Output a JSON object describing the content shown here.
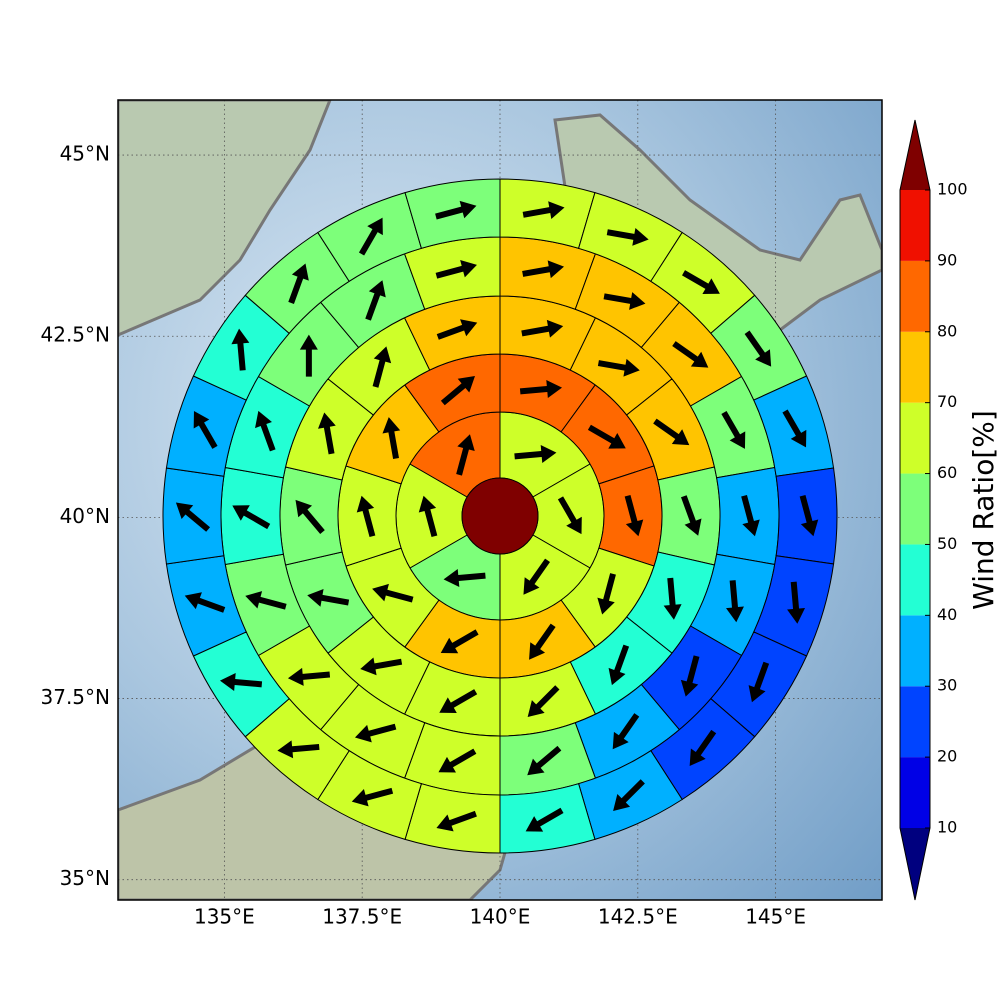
{
  "chart_data": {
    "type": "polar-sector-map",
    "xlim": [
      133.07,
      146.93
    ],
    "xticks": [
      {
        "value": 135,
        "label": "135°E"
      },
      {
        "value": 137.5,
        "label": "137.5°E"
      },
      {
        "value": 140,
        "label": "140°E"
      },
      {
        "value": 142.5,
        "label": "142.5°E"
      },
      {
        "value": 145,
        "label": "145°E"
      }
    ],
    "ylim": [
      34.72,
      45.76
    ],
    "yticks": [
      {
        "value": 35,
        "label": "35°N"
      },
      {
        "value": 37.5,
        "label": "37.5°N"
      },
      {
        "value": 40,
        "label": "40°N"
      },
      {
        "value": 42.5,
        "label": "42.5°N"
      },
      {
        "value": 45,
        "label": "45°N"
      }
    ],
    "grid": true,
    "center_value": 105,
    "rings": [
      {
        "values": [
          65,
          65,
          65,
          55,
          65,
          85
        ],
        "directions": [
          85,
          150,
          215,
          265,
          345,
          15
        ]
      },
      {
        "values": [
          85,
          85,
          85,
          65,
          75,
          75,
          65,
          65,
          75,
          85
        ],
        "directions": [
          85,
          120,
          165,
          195,
          215,
          240,
          285,
          345,
          350,
          50
        ]
      },
      {
        "values": [
          75,
          75,
          75,
          55,
          45,
          45,
          65,
          65,
          65,
          55,
          55,
          65,
          65,
          75
        ],
        "directions": [
          80,
          100,
          125,
          160,
          175,
          200,
          225,
          240,
          260,
          280,
          320,
          350,
          15,
          70
        ]
      },
      {
        "values": [
          75,
          75,
          75,
          55,
          35,
          35,
          25,
          35,
          55,
          65,
          65,
          65,
          55,
          45,
          45,
          55,
          55,
          65
        ],
        "directions": [
          80,
          100,
          125,
          150,
          165,
          175,
          195,
          215,
          230,
          240,
          255,
          265,
          285,
          300,
          340,
          0,
          20,
          75
        ]
      },
      {
        "values": [
          65,
          65,
          65,
          55,
          35,
          25,
          25,
          25,
          25,
          35,
          45,
          65,
          65,
          65,
          45,
          35,
          35,
          35,
          45,
          55,
          55,
          55
        ],
        "directions": [
          80,
          100,
          120,
          145,
          150,
          165,
          175,
          200,
          215,
          225,
          240,
          250,
          255,
          265,
          275,
          290,
          310,
          330,
          355,
          20,
          30,
          75
        ]
      }
    ],
    "colorbar": {
      "label": "Wind Ratio[%]",
      "levels": [
        10,
        20,
        30,
        40,
        50,
        60,
        70,
        80,
        90,
        100
      ],
      "colors": [
        "#00007f",
        "#0000e6",
        "#0044ff",
        "#00b0ff",
        "#23ffd4",
        "#7dff7a",
        "#ceff29",
        "#ffc400",
        "#ff6800",
        "#f01000",
        "#7f0000"
      ]
    }
  }
}
